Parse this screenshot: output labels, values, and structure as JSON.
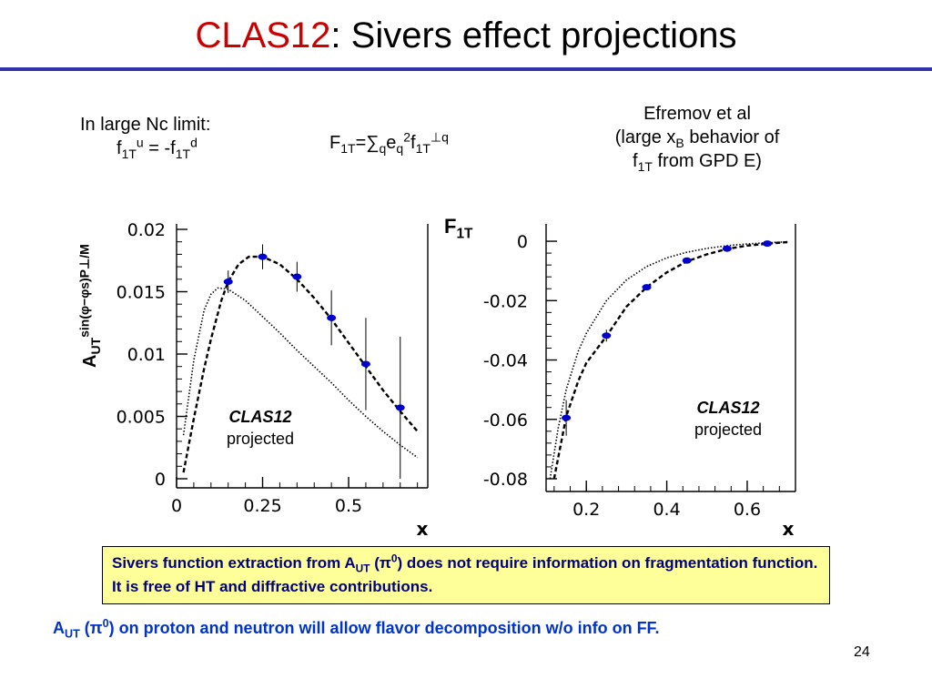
{
  "title": {
    "red": "CLAS12",
    "rest": ": Sivers effect projections"
  },
  "notes": {
    "nc_line1": "In large Nc limit:",
    "nc_f": "f",
    "nc_sub1": "1T",
    "nc_sup1": "u",
    "nc_eq": " = -f",
    "nc_sub2": "1T",
    "nc_sup2": "d",
    "f1t_F": "F",
    "f1t_sub1": "1T",
    "f1t_eq": "=∑",
    "f1t_subq": "q",
    "f1t_e": "e",
    "f1t_subq2": "q",
    "f1t_sup2": "2",
    "f1t_f": "f",
    "f1t_sub1T": "1T",
    "f1t_supq": "⊥q",
    "efremov_l1": "Efremov et al",
    "efremov_l2a": "(large x",
    "efremov_l2sub": "B",
    "efremov_l2b": " behavior of",
    "efremov_l3a": "f",
    "efremov_l3sub": "1T",
    "efremov_l3b": " from GPD E)"
  },
  "axis_labels": {
    "left_y": "A",
    "left_y_sub": "UT",
    "left_y_sup": "sin(φ−φs)P⊥/M",
    "right_y": "F",
    "right_y_sub": "1T"
  },
  "proj": {
    "bold": "CLAS12",
    "normal": "projected"
  },
  "yellow_box": {
    "t1": "Sivers function extraction from A",
    "t1sub": "UT",
    "t2": " (π",
    "t2sup": "0",
    "t3": ") does not require information on fragmentation function. It is free of HT and diffractive contributions."
  },
  "bottom": {
    "a": "A",
    "asub": "UT",
    "b": " (π",
    "bsup": "0",
    "c": ") on proton and neutron will allow flavor decomposition w/o info on FF."
  },
  "page_number": "24",
  "colors": {
    "title_red": "#cc0000",
    "rule": "#3333aa",
    "marker": "#0000cc",
    "box_bg": "#ffff99",
    "box_text": "#000080",
    "bottom_text": "#0033cc"
  },
  "chart_data": [
    {
      "type": "line",
      "xlabel": "x",
      "ylabel": "A_UT^{sin(φ−φs)P⊥/M}",
      "xlim": [
        0,
        0.73
      ],
      "ylim": [
        0,
        0.02
      ],
      "xticks": [
        "0",
        "0.25",
        "0.5"
      ],
      "xtick_values": [
        0,
        0.25,
        0.5
      ],
      "yticks": [
        "0",
        "0.005",
        "0.01",
        "0.015",
        "0.02"
      ],
      "ytick_values": [
        0,
        0.005,
        0.01,
        0.015,
        0.02
      ],
      "series": [
        {
          "style": "dotted",
          "points": [
            [
              0.02,
              0.0035
            ],
            [
              0.05,
              0.0095
            ],
            [
              0.08,
              0.0135
            ],
            [
              0.1,
              0.0148
            ],
            [
              0.12,
              0.0153
            ],
            [
              0.15,
              0.0152
            ],
            [
              0.2,
              0.0143
            ],
            [
              0.25,
              0.013
            ],
            [
              0.3,
              0.0117
            ],
            [
              0.35,
              0.0103
            ],
            [
              0.4,
              0.009
            ],
            [
              0.45,
              0.0077
            ],
            [
              0.5,
              0.0063
            ],
            [
              0.55,
              0.005
            ],
            [
              0.6,
              0.0038
            ],
            [
              0.65,
              0.0027
            ],
            [
              0.7,
              0.0017
            ]
          ]
        },
        {
          "style": "dashed",
          "points": [
            [
              0.02,
              0.0005
            ],
            [
              0.05,
              0.0048
            ],
            [
              0.08,
              0.0088
            ],
            [
              0.1,
              0.0112
            ],
            [
              0.13,
              0.0143
            ],
            [
              0.15,
              0.0158
            ],
            [
              0.18,
              0.0172
            ],
            [
              0.21,
              0.0178
            ],
            [
              0.25,
              0.0178
            ],
            [
              0.3,
              0.0172
            ],
            [
              0.35,
              0.016
            ],
            [
              0.4,
              0.0145
            ],
            [
              0.45,
              0.0128
            ],
            [
              0.5,
              0.0109
            ],
            [
              0.55,
              0.009
            ],
            [
              0.6,
              0.0071
            ],
            [
              0.65,
              0.0054
            ],
            [
              0.7,
              0.0038
            ]
          ]
        }
      ],
      "projected_points": [
        {
          "x": 0.15,
          "y": 0.0158,
          "err": 0.0009
        },
        {
          "x": 0.25,
          "y": 0.0178,
          "err": 0.001
        },
        {
          "x": 0.35,
          "y": 0.0162,
          "err": 0.0012
        },
        {
          "x": 0.45,
          "y": 0.0129,
          "err": 0.0022
        },
        {
          "x": 0.55,
          "y": 0.0092,
          "err": 0.0037
        },
        {
          "x": 0.65,
          "y": 0.0057,
          "err": 0.0057
        }
      ]
    },
    {
      "type": "line",
      "xlabel": "x",
      "ylabel": "F_1T",
      "xlim": [
        0.1,
        0.72
      ],
      "ylim": [
        -0.08,
        0.004
      ],
      "xticks": [
        "0.2",
        "0.4",
        "0.6"
      ],
      "xtick_values": [
        0.2,
        0.4,
        0.6
      ],
      "yticks": [
        "0",
        "-0.02",
        "-0.04",
        "-0.06",
        "-0.08"
      ],
      "ytick_values": [
        0,
        -0.02,
        -0.04,
        -0.06,
        -0.08
      ],
      "series": [
        {
          "style": "dotted",
          "points": [
            [
              0.11,
              -0.08
            ],
            [
              0.13,
              -0.063
            ],
            [
              0.15,
              -0.05
            ],
            [
              0.18,
              -0.037
            ],
            [
              0.2,
              -0.031
            ],
            [
              0.25,
              -0.02
            ],
            [
              0.3,
              -0.013
            ],
            [
              0.35,
              -0.0085
            ],
            [
              0.4,
              -0.0056
            ],
            [
              0.45,
              -0.0037
            ],
            [
              0.5,
              -0.0024
            ],
            [
              0.55,
              -0.0015
            ],
            [
              0.6,
              -0.0009
            ],
            [
              0.65,
              -0.0005
            ],
            [
              0.7,
              -0.0002
            ]
          ]
        },
        {
          "style": "dashed",
          "points": [
            [
              0.12,
              -0.08
            ],
            [
              0.14,
              -0.066
            ],
            [
              0.15,
              -0.059
            ],
            [
              0.18,
              -0.047
            ],
            [
              0.2,
              -0.041
            ],
            [
              0.25,
              -0.032
            ],
            [
              0.3,
              -0.022
            ],
            [
              0.35,
              -0.0155
            ],
            [
              0.4,
              -0.0105
            ],
            [
              0.45,
              -0.0068
            ],
            [
              0.5,
              -0.0044
            ],
            [
              0.55,
              -0.0026
            ],
            [
              0.6,
              -0.0015
            ],
            [
              0.65,
              -0.0008
            ],
            [
              0.7,
              -0.0003
            ]
          ]
        }
      ],
      "projected_points": [
        {
          "x": 0.15,
          "y": -0.0595,
          "err": 0.006
        },
        {
          "x": 0.25,
          "y": -0.0318,
          "err": 0.002
        },
        {
          "x": 0.35,
          "y": -0.0155,
          "err": 0.001
        },
        {
          "x": 0.45,
          "y": -0.0065,
          "err": 0.0005
        },
        {
          "x": 0.55,
          "y": -0.0025,
          "err": 0.0003
        },
        {
          "x": 0.65,
          "y": -0.0008,
          "err": 0.0002
        }
      ]
    }
  ]
}
